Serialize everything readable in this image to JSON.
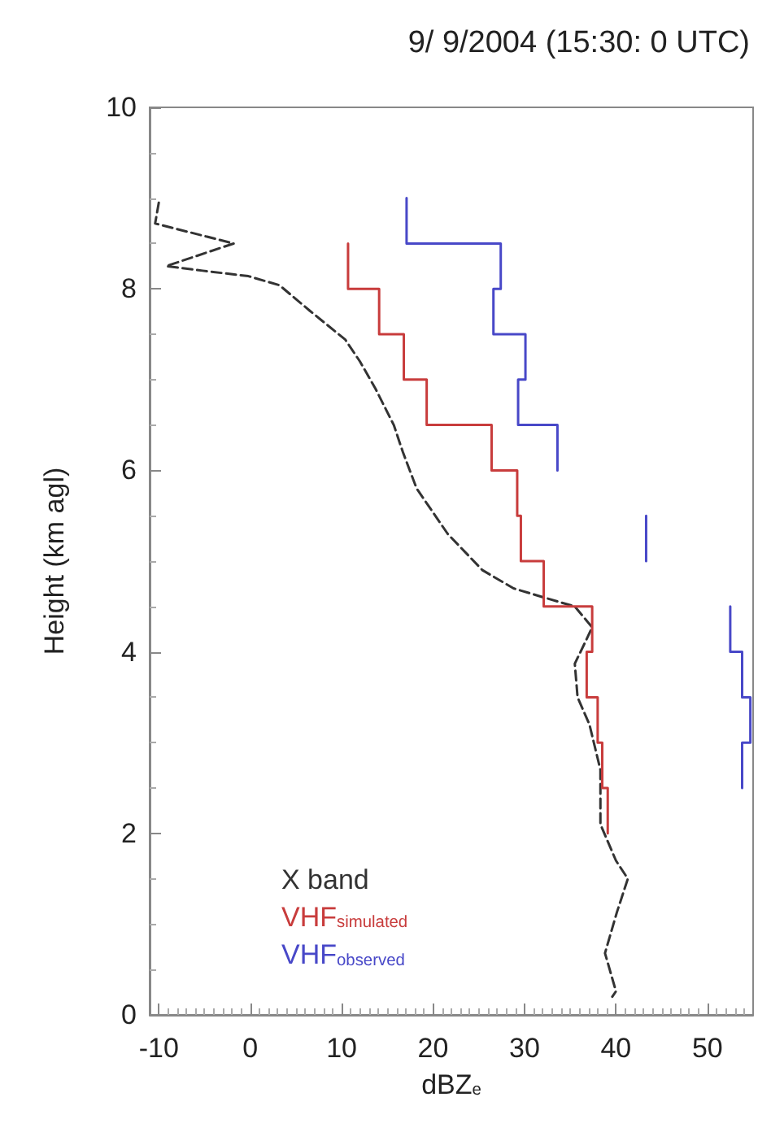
{
  "chart_data": {
    "type": "line",
    "title": "9/ 9/2004 (15:30: 0 UTC)",
    "xlabel": "dBZ$_{e}$",
    "ylabel": "Height (km agl)",
    "xlim": [
      -11,
      55
    ],
    "xticks": [
      -10,
      0,
      10,
      20,
      30,
      40,
      50
    ],
    "ylim": [
      0,
      10
    ],
    "yticks": [
      0,
      2,
      4,
      6,
      8,
      10
    ],
    "grid": false,
    "legend": "bottom left",
    "marker": "none",
    "series": [
      {
        "name": "X band",
        "color": "#333333",
        "line_style": "dashed",
        "x": [
          -10,
          -10.4,
          -1.8,
          -9.2,
          -5.2,
          -0.2,
          3.2,
          6.5,
          10.4,
          12,
          13.7,
          15.7,
          16.7,
          18.2,
          21.6,
          25.4,
          28.8,
          32.1,
          35.5,
          37.4,
          36.6,
          35.5,
          35.8,
          37.1,
          38.3,
          38.3,
          40,
          41.3,
          40.1,
          38.8,
          40,
          39.6
        ],
        "values": [
          8.95,
          8.72,
          8.5,
          8.25,
          8.2,
          8.14,
          8.04,
          7.76,
          7.44,
          7.2,
          6.9,
          6.5,
          6.2,
          5.8,
          5.3,
          4.9,
          4.7,
          4.6,
          4.5,
          4.27,
          4.1,
          3.87,
          3.5,
          3.2,
          2.7,
          2.1,
          1.7,
          1.5,
          1.13,
          0.68,
          0.26,
          0.2
        ]
      },
      {
        "name": "VHF$_{simulated}$",
        "color": "#c83c3c",
        "line_style": "solid",
        "x": [
          10.7,
          10.7,
          14.1,
          14.1,
          16.8,
          16.8,
          19.3,
          19.3,
          26.4,
          26.4,
          29.2,
          29.2,
          29.6,
          29.6,
          32.1,
          32.1,
          37.4,
          37.4,
          36.8,
          36.8,
          38,
          38,
          38.5,
          38.5,
          39.1,
          39.1
        ],
        "values": [
          8.5,
          8,
          8,
          7.5,
          7.5,
          7,
          7,
          6.5,
          6.5,
          6,
          6,
          5.5,
          5.5,
          5,
          5,
          4.5,
          4.5,
          4,
          4,
          3.5,
          3.5,
          3,
          3,
          2.5,
          2.5,
          2
        ]
      },
      {
        "name": "VHF$_{observed}$",
        "color": "#4848c8",
        "line_style": "solid",
        "x": [
          17.1,
          17.1,
          27.4,
          27.4,
          26.6,
          26.6,
          30.1,
          30.1,
          29.3,
          29.3,
          33.6,
          33.6,
          null,
          43.3,
          43.3,
          null,
          52.5,
          52.5,
          53.8,
          53.8,
          54.7,
          54.7,
          53.8,
          53.8
        ],
        "values": [
          9,
          8.5,
          8.5,
          8,
          8,
          7.5,
          7.5,
          7,
          7,
          6.5,
          6.5,
          6,
          null,
          5.5,
          5,
          null,
          4.5,
          4,
          4,
          3.5,
          3.5,
          3,
          3,
          2.5
        ]
      }
    ]
  }
}
